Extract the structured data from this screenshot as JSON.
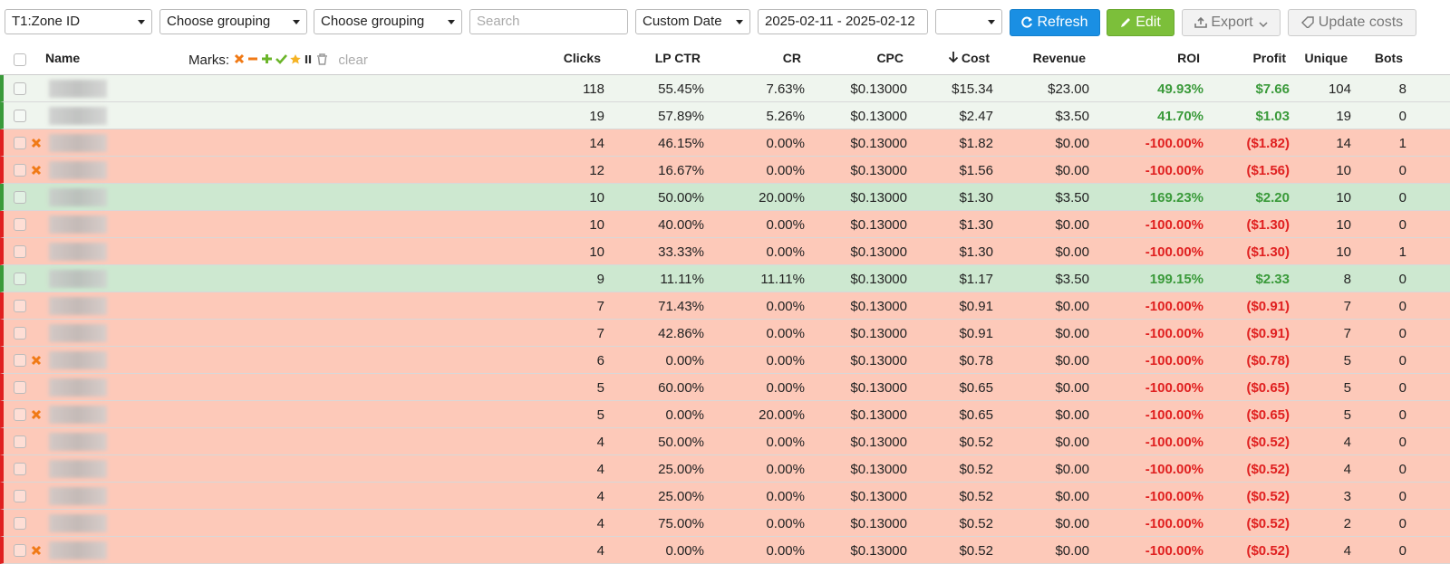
{
  "toolbar": {
    "grouping_1": "T1:Zone ID",
    "grouping_2": "Choose grouping",
    "grouping_3": "Choose grouping",
    "search_placeholder": "Search",
    "date_mode": "Custom Date",
    "date_range": "2025-02-11 - 2025-02-12",
    "refresh": "Refresh",
    "edit": "Edit",
    "export": "Export",
    "update_costs": "Update costs"
  },
  "table": {
    "header": {
      "name": "Name",
      "marks": "Marks:",
      "clear": "clear"
    },
    "columns": [
      "Clicks",
      "LP CTR",
      "CR",
      "CPC",
      "Cost",
      "Revenue",
      "ROI",
      "Profit",
      "Unique",
      "Bots"
    ],
    "rows": [
      {
        "marked": false,
        "color": "#eff5ee",
        "accent": "#3a9a3a",
        "cells": [
          "118",
          "55.45%",
          "7.63%",
          "$0.13000",
          "$15.34",
          "$23.00",
          "49.93%",
          "$7.66",
          "104",
          "8"
        ]
      },
      {
        "marked": false,
        "color": "#eff5ee",
        "accent": "#3a9a3a",
        "cells": [
          "19",
          "57.89%",
          "5.26%",
          "$0.13000",
          "$2.47",
          "$3.50",
          "41.70%",
          "$1.03",
          "19",
          "0"
        ]
      },
      {
        "marked": true,
        "color": "#fdc9b9",
        "accent": "#e02020",
        "cells": [
          "14",
          "46.15%",
          "0.00%",
          "$0.13000",
          "$1.82",
          "$0.00",
          "-100.00%",
          "($1.82)",
          "14",
          "1"
        ]
      },
      {
        "marked": true,
        "color": "#fdc9b9",
        "accent": "#e02020",
        "cells": [
          "12",
          "16.67%",
          "0.00%",
          "$0.13000",
          "$1.56",
          "$0.00",
          "-100.00%",
          "($1.56)",
          "10",
          "0"
        ]
      },
      {
        "marked": false,
        "color": "#cde8d0",
        "accent": "#3a9a3a",
        "cells": [
          "10",
          "50.00%",
          "20.00%",
          "$0.13000",
          "$1.30",
          "$3.50",
          "169.23%",
          "$2.20",
          "10",
          "0"
        ]
      },
      {
        "marked": false,
        "color": "#fdc9b9",
        "accent": "#e02020",
        "cells": [
          "10",
          "40.00%",
          "0.00%",
          "$0.13000",
          "$1.30",
          "$0.00",
          "-100.00%",
          "($1.30)",
          "10",
          "0"
        ]
      },
      {
        "marked": false,
        "color": "#fdc9b9",
        "accent": "#e02020",
        "cells": [
          "10",
          "33.33%",
          "0.00%",
          "$0.13000",
          "$1.30",
          "$0.00",
          "-100.00%",
          "($1.30)",
          "10",
          "1"
        ]
      },
      {
        "marked": false,
        "color": "#cde8d0",
        "accent": "#3a9a3a",
        "cells": [
          "9",
          "11.11%",
          "11.11%",
          "$0.13000",
          "$1.17",
          "$3.50",
          "199.15%",
          "$2.33",
          "8",
          "0"
        ]
      },
      {
        "marked": false,
        "color": "#fdc9b9",
        "accent": "#e02020",
        "cells": [
          "7",
          "71.43%",
          "0.00%",
          "$0.13000",
          "$0.91",
          "$0.00",
          "-100.00%",
          "($0.91)",
          "7",
          "0"
        ]
      },
      {
        "marked": false,
        "color": "#fdc9b9",
        "accent": "#e02020",
        "cells": [
          "7",
          "42.86%",
          "0.00%",
          "$0.13000",
          "$0.91",
          "$0.00",
          "-100.00%",
          "($0.91)",
          "7",
          "0"
        ]
      },
      {
        "marked": true,
        "color": "#fdc9b9",
        "accent": "#e02020",
        "cells": [
          "6",
          "0.00%",
          "0.00%",
          "$0.13000",
          "$0.78",
          "$0.00",
          "-100.00%",
          "($0.78)",
          "5",
          "0"
        ]
      },
      {
        "marked": false,
        "color": "#fdc9b9",
        "accent": "#e02020",
        "cells": [
          "5",
          "60.00%",
          "0.00%",
          "$0.13000",
          "$0.65",
          "$0.00",
          "-100.00%",
          "($0.65)",
          "5",
          "0"
        ]
      },
      {
        "marked": true,
        "color": "#fdc9b9",
        "accent": "#e02020",
        "cells": [
          "5",
          "0.00%",
          "20.00%",
          "$0.13000",
          "$0.65",
          "$0.00",
          "-100.00%",
          "($0.65)",
          "5",
          "0"
        ]
      },
      {
        "marked": false,
        "color": "#fdc9b9",
        "accent": "#e02020",
        "cells": [
          "4",
          "50.00%",
          "0.00%",
          "$0.13000",
          "$0.52",
          "$0.00",
          "-100.00%",
          "($0.52)",
          "4",
          "0"
        ]
      },
      {
        "marked": false,
        "color": "#fdc9b9",
        "accent": "#e02020",
        "cells": [
          "4",
          "25.00%",
          "0.00%",
          "$0.13000",
          "$0.52",
          "$0.00",
          "-100.00%",
          "($0.52)",
          "4",
          "0"
        ]
      },
      {
        "marked": false,
        "color": "#fdc9b9",
        "accent": "#e02020",
        "cells": [
          "4",
          "25.00%",
          "0.00%",
          "$0.13000",
          "$0.52",
          "$0.00",
          "-100.00%",
          "($0.52)",
          "3",
          "0"
        ]
      },
      {
        "marked": false,
        "color": "#fdc9b9",
        "accent": "#e02020",
        "cells": [
          "4",
          "75.00%",
          "0.00%",
          "$0.13000",
          "$0.52",
          "$0.00",
          "-100.00%",
          "($0.52)",
          "2",
          "0"
        ]
      },
      {
        "marked": true,
        "color": "#fdc9b9",
        "accent": "#e02020",
        "cells": [
          "4",
          "0.00%",
          "0.00%",
          "$0.13000",
          "$0.52",
          "$0.00",
          "-100.00%",
          "($0.52)",
          "4",
          "0"
        ]
      }
    ]
  }
}
